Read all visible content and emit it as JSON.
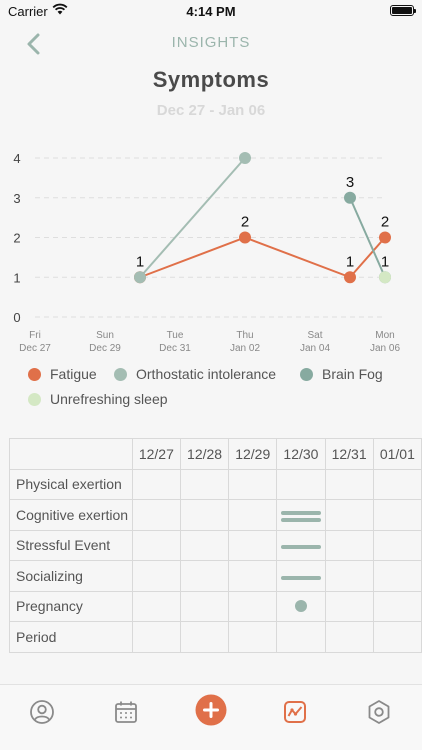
{
  "status_bar": {
    "carrier": "Carrier",
    "time": "4:14 PM"
  },
  "nav": {
    "title": "INSIGHTS"
  },
  "header": {
    "title": "Symptoms",
    "date_range": "Dec 27 - Jan 06"
  },
  "colors": {
    "fatigue": "#e07049",
    "orthostatic": "#a4bdb3",
    "brain_fog": "#87aaa0",
    "unrefreshing": "#d4e8c4",
    "accent": "#9bb5ac"
  },
  "chart_data": {
    "type": "line",
    "title": "",
    "xlabel": "",
    "ylabel": "",
    "ylim": [
      0,
      4
    ],
    "yticks": [
      0,
      1,
      2,
      3,
      4
    ],
    "x_ticks": [
      {
        "day": "Fri",
        "date": "Dec 27"
      },
      {
        "day": "Sun",
        "date": "Dec 29"
      },
      {
        "day": "Tue",
        "date": "Dec 31"
      },
      {
        "day": "Thu",
        "date": "Jan 02"
      },
      {
        "day": "Sat",
        "date": "Jan 04"
      },
      {
        "day": "Mon",
        "date": "Jan 06"
      }
    ],
    "grid": true,
    "legend_position": "bottom",
    "series": [
      {
        "name": "Fatigue",
        "color": "#e07049",
        "points": [
          {
            "x": "Dec 30",
            "y": 1
          },
          {
            "x": "Jan 02",
            "y": 2
          },
          {
            "x": "Jan 05",
            "y": 1
          },
          {
            "x": "Jan 06",
            "y": 2
          }
        ]
      },
      {
        "name": "Orthostatic intolerance",
        "color": "#a4bdb3",
        "points": [
          {
            "x": "Dec 30",
            "y": 1
          },
          {
            "x": "Jan 02",
            "y": 4
          }
        ]
      },
      {
        "name": "Brain Fog",
        "color": "#87aaa0",
        "points": [
          {
            "x": "Jan 05",
            "y": 3
          },
          {
            "x": "Jan 06",
            "y": 1
          }
        ]
      },
      {
        "name": "Unrefreshing sleep",
        "color": "#d4e8c4",
        "points": [
          {
            "x": "Jan 06",
            "y": 1
          }
        ]
      }
    ],
    "data_labels": [
      {
        "x": "Dec 30",
        "y": 1,
        "label": "1"
      },
      {
        "x": "Jan 02",
        "y": 2,
        "label": "2"
      },
      {
        "x": "Jan 05",
        "y": 1,
        "label": "1"
      },
      {
        "x": "Jan 05",
        "y": 3,
        "label": "3"
      },
      {
        "x": "Jan 06",
        "y": 2,
        "label": "2"
      },
      {
        "x": "Jan 06",
        "y": 1,
        "label": "1"
      }
    ]
  },
  "legend": [
    {
      "label": "Fatigue",
      "color": "#e07049"
    },
    {
      "label": "Orthostatic intolerance",
      "color": "#a4bdb3"
    },
    {
      "label": "Brain Fog",
      "color": "#87aaa0"
    },
    {
      "label": "Unrefreshing sleep",
      "color": "#d4e8c4"
    }
  ],
  "activity_table": {
    "dates": [
      "12/27",
      "12/28",
      "12/29",
      "12/30",
      "12/31",
      "01/01"
    ],
    "rows": [
      {
        "label": "Physical exertion",
        "marks": [
          "",
          "",
          "",
          "",
          "",
          ""
        ]
      },
      {
        "label": "Cognitive exertion",
        "marks": [
          "",
          "",
          "",
          "bar2",
          "",
          ""
        ]
      },
      {
        "label": "Stressful Event",
        "marks": [
          "",
          "",
          "",
          "bar1",
          "",
          ""
        ]
      },
      {
        "label": "Socializing",
        "marks": [
          "",
          "",
          "",
          "bar1",
          "",
          ""
        ]
      },
      {
        "label": "Pregnancy",
        "marks": [
          "",
          "",
          "",
          "dot",
          "",
          ""
        ]
      },
      {
        "label": "Period",
        "marks": [
          "",
          "",
          "",
          "",
          "",
          ""
        ]
      }
    ]
  },
  "tab_bar": {
    "tabs": [
      {
        "name": "profile",
        "icon": "user-icon"
      },
      {
        "name": "calendar",
        "icon": "calendar-icon"
      },
      {
        "name": "add",
        "icon": "plus-icon"
      },
      {
        "name": "insights",
        "icon": "chart-icon",
        "active": true
      },
      {
        "name": "settings",
        "icon": "hexagon-icon"
      }
    ]
  }
}
